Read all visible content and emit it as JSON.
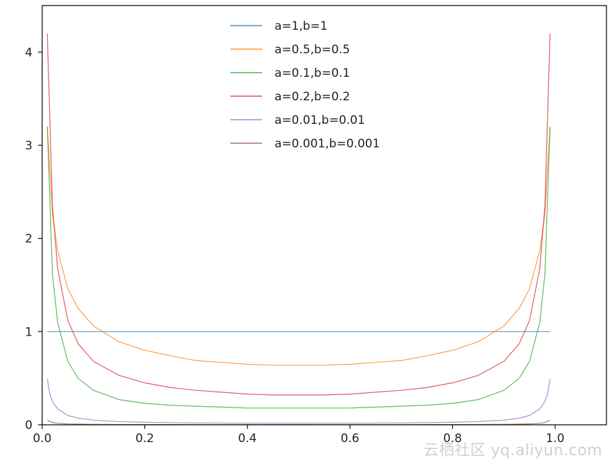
{
  "chart_data": {
    "type": "line",
    "title": "",
    "xlabel": "",
    "ylabel": "",
    "xlim": [
      0.0,
      1.1
    ],
    "ylim": [
      0,
      4.5
    ],
    "xticks": [
      0.0,
      0.2,
      0.4,
      0.6,
      0.8,
      1.0
    ],
    "xtick_labels": [
      "0.0",
      "0.2",
      "0.4",
      "0.6",
      "0.8",
      "1.0"
    ],
    "yticks": [
      0,
      1,
      2,
      3,
      4
    ],
    "ytick_labels": [
      "0",
      "1",
      "2",
      "3",
      "4"
    ],
    "grid": false,
    "legend_position": "top-center",
    "series": [
      {
        "name": "a=1,b=1",
        "color": "#1f77b4",
        "x": [
          0.01,
          0.99
        ],
        "y": [
          1.0,
          1.0
        ]
      },
      {
        "name": "a=0.5,b=0.5",
        "color": "#ff7f0e",
        "x": [
          0.01,
          0.02,
          0.03,
          0.05,
          0.07,
          0.1,
          0.15,
          0.2,
          0.25,
          0.3,
          0.35,
          0.4,
          0.45,
          0.5,
          0.55,
          0.6,
          0.65,
          0.7,
          0.75,
          0.8,
          0.85,
          0.9,
          0.93,
          0.95,
          0.97,
          0.98,
          0.99
        ],
        "y": [
          3.2,
          2.27,
          1.87,
          1.46,
          1.25,
          1.06,
          0.89,
          0.8,
          0.74,
          0.69,
          0.67,
          0.65,
          0.64,
          0.64,
          0.64,
          0.65,
          0.67,
          0.69,
          0.74,
          0.8,
          0.89,
          1.06,
          1.25,
          1.46,
          1.87,
          2.27,
          3.2
        ]
      },
      {
        "name": "a=0.1,b=0.1",
        "color": "#2ca02c",
        "x": [
          0.01,
          0.02,
          0.03,
          0.05,
          0.07,
          0.1,
          0.15,
          0.2,
          0.25,
          0.3,
          0.35,
          0.4,
          0.45,
          0.5,
          0.55,
          0.6,
          0.65,
          0.7,
          0.75,
          0.8,
          0.85,
          0.9,
          0.93,
          0.95,
          0.97,
          0.98,
          0.99
        ],
        "y": [
          3.2,
          1.62,
          1.1,
          0.68,
          0.5,
          0.37,
          0.27,
          0.23,
          0.21,
          0.2,
          0.19,
          0.18,
          0.18,
          0.18,
          0.18,
          0.18,
          0.19,
          0.2,
          0.21,
          0.23,
          0.27,
          0.37,
          0.5,
          0.68,
          1.1,
          1.62,
          3.2
        ]
      },
      {
        "name": "a=0.2,b=0.2",
        "color": "#d62728",
        "x": [
          0.01,
          0.02,
          0.03,
          0.05,
          0.07,
          0.1,
          0.15,
          0.2,
          0.25,
          0.3,
          0.35,
          0.4,
          0.45,
          0.5,
          0.55,
          0.6,
          0.65,
          0.7,
          0.75,
          0.8,
          0.85,
          0.9,
          0.93,
          0.95,
          0.97,
          0.98,
          0.99
        ],
        "y": [
          4.2,
          2.35,
          1.68,
          1.12,
          0.87,
          0.68,
          0.53,
          0.45,
          0.4,
          0.37,
          0.35,
          0.33,
          0.32,
          0.32,
          0.32,
          0.33,
          0.35,
          0.37,
          0.4,
          0.45,
          0.53,
          0.68,
          0.87,
          1.12,
          1.68,
          2.35,
          4.2
        ]
      },
      {
        "name": "a=0.01,b=0.01",
        "color": "#9467bd",
        "x": [
          0.01,
          0.015,
          0.02,
          0.03,
          0.05,
          0.07,
          0.1,
          0.15,
          0.2,
          0.3,
          0.4,
          0.5,
          0.6,
          0.7,
          0.8,
          0.85,
          0.9,
          0.93,
          0.95,
          0.97,
          0.98,
          0.985,
          0.99
        ],
        "y": [
          0.49,
          0.33,
          0.25,
          0.17,
          0.1,
          0.072,
          0.05,
          0.035,
          0.027,
          0.02,
          0.017,
          0.016,
          0.017,
          0.02,
          0.027,
          0.035,
          0.05,
          0.072,
          0.1,
          0.17,
          0.25,
          0.33,
          0.49
        ]
      },
      {
        "name": "a=0.001,b=0.001",
        "color": "#8c564b",
        "x": [
          0.01,
          0.02,
          0.03,
          0.05,
          0.1,
          0.2,
          0.3,
          0.4,
          0.5,
          0.6,
          0.7,
          0.8,
          0.9,
          0.95,
          0.97,
          0.98,
          0.99
        ],
        "y": [
          0.05,
          0.025,
          0.017,
          0.01,
          0.005,
          0.003,
          0.002,
          0.002,
          0.002,
          0.002,
          0.002,
          0.003,
          0.005,
          0.01,
          0.017,
          0.025,
          0.05
        ]
      }
    ]
  },
  "watermark": "云栖社区 yq.aliyun.com"
}
